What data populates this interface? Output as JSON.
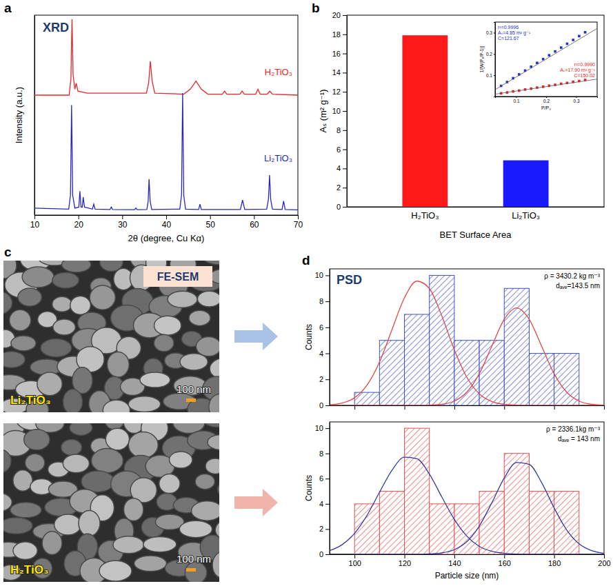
{
  "chart_data": [
    {
      "type": "line",
      "panel_label": "a",
      "title": "XRD",
      "x_label": "2θ (degree, Cu Kα)",
      "y_label": "Intensity (a.u.)",
      "xlim": [
        10,
        70
      ],
      "xticks": [
        10,
        20,
        30,
        40,
        50,
        60,
        70
      ],
      "ylim": [
        0,
        100
      ],
      "tick_labels": "x",
      "series": [
        {
          "name": "H₂TiO₃",
          "color": "#e8262a",
          "x": [
            10,
            17.9,
            18.3,
            18.55,
            18.8,
            19.2,
            19.5,
            19.9,
            22,
            35.5,
            36.0,
            36.4,
            36.8,
            37.4,
            44,
            45.5,
            46.8,
            48,
            49.5,
            52.8,
            53.3,
            53.8,
            56.8,
            57.3,
            57.8,
            60.4,
            60.9,
            61.4,
            63,
            63.6,
            64.2,
            70
          ],
          "values": [
            60,
            60,
            68,
            98,
            70,
            63,
            66,
            62,
            61,
            61,
            66,
            77,
            67,
            61,
            60.5,
            63,
            67,
            63,
            60.5,
            60.5,
            62,
            60.5,
            60.5,
            62,
            60.5,
            60.5,
            63,
            60.5,
            60.5,
            62,
            60.5,
            60
          ]
        },
        {
          "name": "Li₂TiO₃",
          "color": "#2626c8",
          "x": [
            10,
            17.8,
            18.2,
            18.45,
            18.7,
            19.2,
            20.1,
            20.35,
            20.6,
            20.9,
            21.1,
            21.4,
            23.2,
            23.5,
            23.8,
            27.2,
            27.5,
            27.8,
            32.8,
            33.1,
            33.4,
            35.6,
            35.9,
            36.1,
            36.35,
            36.7,
            43.1,
            43.5,
            43.75,
            44.0,
            44.4,
            47.4,
            47.7,
            48.0,
            56.9,
            57.4,
            57.9,
            62.9,
            63.3,
            63.55,
            63.8,
            64.2,
            66.4,
            66.75,
            67.1,
            70
          ],
          "values": [
            3.5,
            3,
            10,
            55,
            10,
            3.5,
            4,
            12,
            4,
            4,
            9,
            4,
            3,
            5.5,
            3,
            2.8,
            4,
            2.8,
            2.7,
            3.5,
            2.7,
            2.8,
            7,
            18,
            7,
            2.8,
            3,
            10,
            61,
            10,
            3,
            2.8,
            5.5,
            2.8,
            2.8,
            7.5,
            2.8,
            3,
            8,
            20,
            8,
            3,
            2.8,
            7,
            2.8,
            2.6
          ]
        }
      ]
    },
    {
      "type": "bar",
      "panel_label": "b",
      "x_label": "BET Surface Area",
      "y_label": "Aₛ (m² g⁻¹)",
      "categories": [
        "H₂TiO₃",
        "Li₂TiO₃"
      ],
      "values": [
        17.9,
        4.85
      ],
      "colors": [
        "#ff1a1a",
        "#1a1aff"
      ],
      "ylim": [
        0,
        20
      ],
      "yticks": [
        0,
        2,
        4,
        6,
        8,
        10,
        12,
        14,
        16,
        18,
        20
      ]
    },
    {
      "type": "scatter",
      "x_label": "P/P₀",
      "y_label": "1/[W(P₀/P-1)]",
      "xlim": [
        0.03,
        0.37
      ],
      "ylim": [
        0,
        0.35
      ],
      "xticks": [
        0.1,
        0.2,
        0.3
      ],
      "yticks": [
        0.1,
        0.2,
        0.3
      ],
      "series": [
        {
          "color": "#2233cc",
          "marker": "square",
          "x": [
            0.05,
            0.07,
            0.09,
            0.11,
            0.13,
            0.15,
            0.17,
            0.19,
            0.21,
            0.23,
            0.25,
            0.27,
            0.29,
            0.31,
            0.33
          ],
          "values": [
            0.05,
            0.068,
            0.086,
            0.104,
            0.122,
            0.14,
            0.158,
            0.176,
            0.194,
            0.212,
            0.23,
            0.248,
            0.266,
            0.284,
            0.302
          ]
        },
        {
          "color": "#ee2222",
          "marker": "square",
          "x": [
            0.05,
            0.07,
            0.09,
            0.11,
            0.13,
            0.15,
            0.17,
            0.19,
            0.21,
            0.23,
            0.25,
            0.27,
            0.29,
            0.31,
            0.33
          ],
          "values": [
            0.015,
            0.019,
            0.024,
            0.028,
            0.033,
            0.037,
            0.042,
            0.046,
            0.051,
            0.055,
            0.06,
            0.064,
            0.069,
            0.073,
            0.078
          ]
        },
        {
          "type": "line",
          "color": "#555555",
          "x": [
            0.03,
            0.37
          ],
          "values": [
            0.032,
            0.32
          ]
        },
        {
          "type": "line",
          "color": "#555555",
          "x": [
            0.03,
            0.37
          ],
          "values": [
            0.011,
            0.082
          ]
        }
      ],
      "annotations": [
        {
          "color": "#2233cc",
          "lines": [
            "r²=0.9996",
            "Aₛ=4.85 m² g⁻¹",
            "C=121.67"
          ]
        },
        {
          "color": "#ee2222",
          "lines": [
            "r²=0.9990",
            "Aₛ=17.90 m² g⁻¹",
            "C=150.02"
          ]
        }
      ]
    },
    {
      "type": "image",
      "panel_label": "c",
      "title": "FE-SEM",
      "label": "Li₂TiO₃",
      "scale_bar": "100 nm"
    },
    {
      "type": "image",
      "label": "H₂TiO₃",
      "scale_bar": "100 nm"
    },
    {
      "type": "histogram",
      "panel_label": "d",
      "title": "PSD",
      "y_label": "Counts",
      "bins": [
        100,
        110,
        120,
        130,
        140,
        150,
        160,
        170,
        180,
        190
      ],
      "values": [
        1,
        5,
        7,
        10,
        5,
        5,
        9,
        4,
        4
      ],
      "color": "#3c4fc4",
      "xlim": [
        90,
        200
      ],
      "xticks": [
        100,
        120,
        140,
        160,
        180,
        200
      ],
      "ylim": [
        0,
        10.5
      ],
      "yticks": [
        0,
        2,
        4,
        6,
        8,
        10
      ],
      "tick_labels": "y",
      "annotations": [
        "ρ = 3430.2 kg m⁻³",
        "dₐᵥₑ=143.5 nm"
      ],
      "series": [
        {
          "type": "line",
          "color": "#e04848",
          "x": [
            90,
            95,
            100,
            105,
            110,
            115,
            120,
            125,
            130,
            135,
            140,
            145,
            150,
            155,
            160,
            165,
            170,
            175,
            180,
            185,
            190,
            195,
            200
          ],
          "values": [
            0.05,
            0.18,
            0.59,
            1.56,
            3.33,
            5.82,
            8.27,
            9.56,
            8.99,
            6.87,
            4.27,
            2.16,
            0.89,
            0.3,
            0.08,
            0.02,
            0,
            0,
            0,
            0,
            0,
            0,
            0
          ]
        },
        {
          "type": "line",
          "color": "#e04848",
          "x": [
            90,
            95,
            100,
            105,
            110,
            115,
            120,
            125,
            130,
            135,
            140,
            145,
            150,
            155,
            160,
            165,
            170,
            175,
            180,
            185,
            190,
            195,
            200
          ],
          "values": [
            0,
            0,
            0,
            0,
            0,
            0,
            0,
            0,
            0.02,
            0.08,
            0.33,
            1.02,
            2.43,
            4.55,
            6.62,
            7.5,
            6.62,
            4.55,
            2.43,
            1.02,
            0.33,
            0.08,
            0.02
          ]
        }
      ]
    },
    {
      "type": "histogram",
      "x_label": "Particle size (nm)",
      "y_label": "Counts",
      "bins": [
        100,
        110,
        120,
        130,
        140,
        150,
        160,
        170,
        180,
        190
      ],
      "values": [
        4,
        5,
        10,
        4,
        4,
        5,
        8,
        5,
        5
      ],
      "color": "#e05050",
      "xlim": [
        90,
        200
      ],
      "xticks": [
        100,
        120,
        140,
        160,
        180,
        200
      ],
      "ylim": [
        0,
        10.5
      ],
      "yticks": [
        0,
        2,
        4,
        6,
        8,
        10
      ],
      "annotations": [
        "ρ = 2336.1kg m⁻³",
        "dₐᵥₑ = 143 nm"
      ],
      "series": [
        {
          "type": "line",
          "color": "#303ca0",
          "x": [
            90,
            95,
            100,
            105,
            110,
            115,
            120,
            125,
            130,
            135,
            140,
            145,
            150,
            155,
            160,
            165,
            170,
            175,
            180,
            185,
            190,
            195,
            200
          ],
          "values": [
            0.29,
            0.76,
            1.66,
            3.09,
            4.92,
            6.67,
            7.7,
            7.58,
            6.36,
            4.54,
            2.77,
            1.44,
            0.63,
            0.24,
            0.08,
            0.02,
            0,
            0,
            0,
            0,
            0,
            0,
            0
          ]
        },
        {
          "type": "line",
          "color": "#303ca0",
          "x": [
            90,
            95,
            100,
            105,
            110,
            115,
            120,
            125,
            130,
            135,
            140,
            145,
            150,
            155,
            160,
            165,
            170,
            175,
            180,
            185,
            190,
            195,
            200
          ],
          "values": [
            0,
            0,
            0,
            0,
            0,
            0,
            0,
            0,
            0.03,
            0.11,
            0.37,
            1.0,
            2.24,
            4.08,
            6.05,
            7.28,
            7.13,
            5.68,
            3.68,
            1.94,
            0.83,
            0.29,
            0.08
          ]
        }
      ]
    }
  ]
}
